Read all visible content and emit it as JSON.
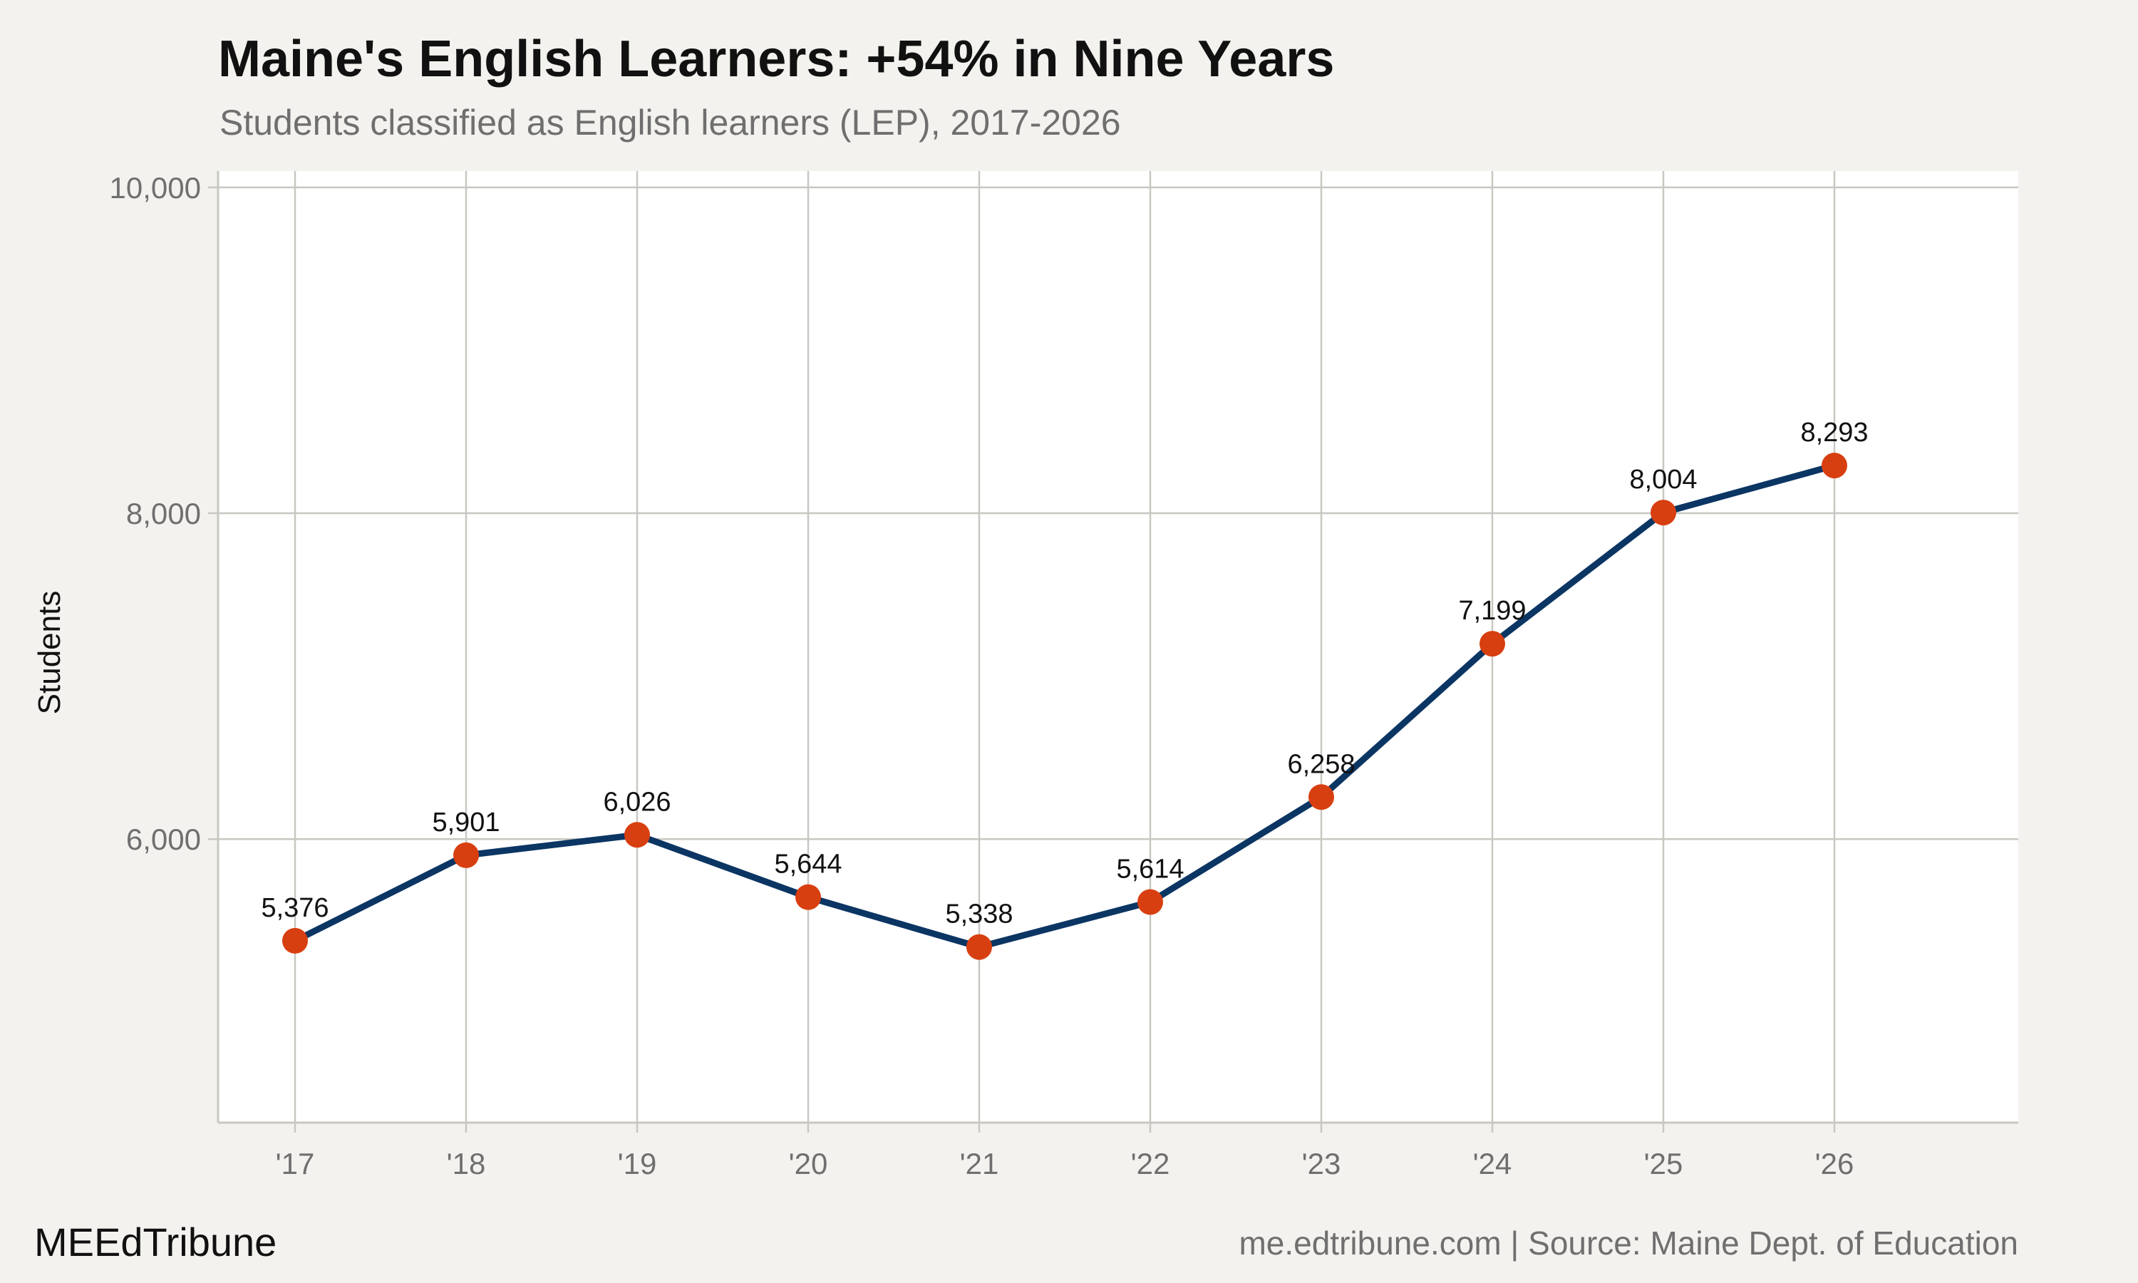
{
  "header": {
    "title": "Maine's English Learners: +54% in Nine Years",
    "subtitle": "Students classified as English learners (LEP), 2017-2026"
  },
  "footer": {
    "brand": "MEEdTribune",
    "source": "me.edtribune.com | Source: Maine Dept. of Education"
  },
  "colors": {
    "background": "#f4f2ee",
    "plot_background": "#ffffff",
    "line": "#0b3563",
    "marker": "#d83f10",
    "grid": "#c9c7c1"
  },
  "chart_data": {
    "type": "line",
    "title": "Maine's English Learners: +54% in Nine Years",
    "subtitle": "Students classified as English learners (LEP), 2017-2026",
    "xlabel": "",
    "ylabel": "Students",
    "categories": [
      "'17",
      "'18",
      "'19",
      "'20",
      "'21",
      "'22",
      "'23",
      "'24",
      "'25",
      "'26"
    ],
    "series": [
      {
        "values": [
          5376,
          5901,
          6026,
          5644,
          5338,
          5614,
          6258,
          7199,
          8004,
          8293
        ],
        "labels": [
          "5,376",
          "5,901",
          "6,026",
          "5,644",
          "5,338",
          "5,614",
          "6,258",
          "7,199",
          "8,004",
          "8,293"
        ]
      }
    ],
    "yticks": [
      6000,
      8000,
      10000
    ],
    "ytick_labels": [
      "6,000",
      "8,000",
      "10,000"
    ],
    "ylim": [
      4260,
      10100
    ],
    "grid": true,
    "legend": "none"
  }
}
